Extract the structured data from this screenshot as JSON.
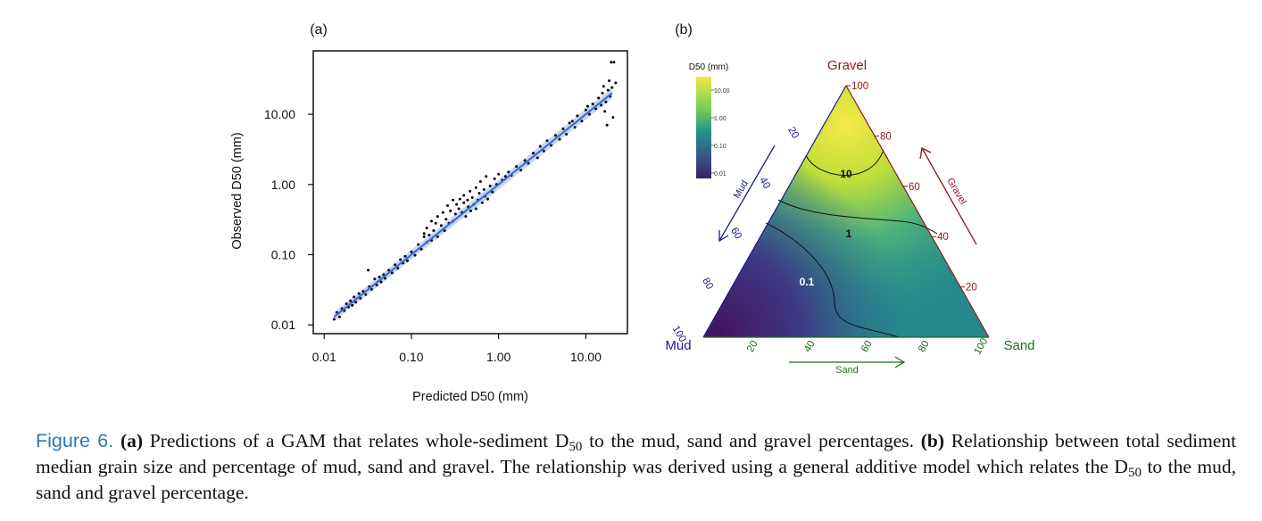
{
  "chart_data": [
    {
      "panel": "(a)",
      "type": "scatter",
      "title": "",
      "xlabel": "Predicted D50 (mm)",
      "ylabel": "Observed D50 (mm)",
      "xscale": "log10",
      "yscale": "log10",
      "xlim": [
        0.0075,
        30
      ],
      "ylim": [
        0.0075,
        80
      ],
      "xticks": [
        0.01,
        0.1,
        1,
        10
      ],
      "xtick_labels": [
        "0.01",
        "0.10",
        "1.00",
        "10.00"
      ],
      "yticks": [
        0.01,
        0.1,
        1,
        10
      ],
      "ytick_labels": [
        "0.01",
        "0.10",
        "1.00",
        "10.00"
      ],
      "grid": false,
      "fit_line": {
        "color": "#3a6fd8",
        "band_color": "#a9bde6",
        "x": [
          0.013,
          20
        ],
        "y": [
          0.013,
          20
        ]
      },
      "points": [
        [
          0.013,
          0.012
        ],
        [
          0.014,
          0.015
        ],
        [
          0.015,
          0.013
        ],
        [
          0.016,
          0.017
        ],
        [
          0.017,
          0.016
        ],
        [
          0.018,
          0.02
        ],
        [
          0.019,
          0.018
        ],
        [
          0.02,
          0.022
        ],
        [
          0.021,
          0.019
        ],
        [
          0.022,
          0.025
        ],
        [
          0.023,
          0.021
        ],
        [
          0.025,
          0.028
        ],
        [
          0.026,
          0.024
        ],
        [
          0.028,
          0.03
        ],
        [
          0.03,
          0.027
        ],
        [
          0.032,
          0.06
        ],
        [
          0.033,
          0.035
        ],
        [
          0.035,
          0.032
        ],
        [
          0.038,
          0.045
        ],
        [
          0.04,
          0.037
        ],
        [
          0.043,
          0.048
        ],
        [
          0.045,
          0.041
        ],
        [
          0.048,
          0.052
        ],
        [
          0.05,
          0.046
        ],
        [
          0.055,
          0.06
        ],
        [
          0.06,
          0.055
        ],
        [
          0.065,
          0.072
        ],
        [
          0.07,
          0.064
        ],
        [
          0.075,
          0.085
        ],
        [
          0.08,
          0.076
        ],
        [
          0.085,
          0.095
        ],
        [
          0.09,
          0.082
        ],
        [
          0.1,
          0.11
        ],
        [
          0.11,
          0.098
        ],
        [
          0.12,
          0.14
        ],
        [
          0.13,
          0.12
        ],
        [
          0.14,
          0.2
        ],
        [
          0.14,
          0.18
        ],
        [
          0.15,
          0.15
        ],
        [
          0.15,
          0.24
        ],
        [
          0.16,
          0.19
        ],
        [
          0.17,
          0.3
        ],
        [
          0.17,
          0.16
        ],
        [
          0.18,
          0.22
        ],
        [
          0.19,
          0.28
        ],
        [
          0.2,
          0.35
        ],
        [
          0.2,
          0.18
        ],
        [
          0.22,
          0.26
        ],
        [
          0.23,
          0.4
        ],
        [
          0.24,
          0.22
        ],
        [
          0.25,
          0.32
        ],
        [
          0.26,
          0.5
        ],
        [
          0.27,
          0.28
        ],
        [
          0.28,
          0.42
        ],
        [
          0.3,
          0.6
        ],
        [
          0.3,
          0.3
        ],
        [
          0.32,
          0.38
        ],
        [
          0.33,
          0.52
        ],
        [
          0.35,
          0.45
        ],
        [
          0.36,
          0.62
        ],
        [
          0.38,
          0.4
        ],
        [
          0.4,
          0.55
        ],
        [
          0.4,
          0.7
        ],
        [
          0.42,
          0.35
        ],
        [
          0.44,
          0.6
        ],
        [
          0.45,
          0.48
        ],
        [
          0.47,
          0.8
        ],
        [
          0.48,
          0.42
        ],
        [
          0.5,
          0.65
        ],
        [
          0.52,
          0.52
        ],
        [
          0.55,
          0.9
        ],
        [
          0.55,
          0.45
        ],
        [
          0.58,
          0.6
        ],
        [
          0.6,
          0.75
        ],
        [
          0.62,
          1.1
        ],
        [
          0.65,
          0.55
        ],
        [
          0.68,
          0.85
        ],
        [
          0.7,
          0.68
        ],
        [
          0.72,
          1.3
        ],
        [
          0.75,
          0.62
        ],
        [
          0.8,
          0.95
        ],
        [
          0.85,
          0.78
        ],
        [
          0.9,
          1.2
        ],
        [
          0.95,
          1.0
        ],
        [
          1.0,
          1.4
        ],
        [
          1.1,
          1.15
        ],
        [
          1.2,
          1.3
        ],
        [
          1.3,
          1.5
        ],
        [
          1.4,
          1.35
        ],
        [
          1.6,
          1.8
        ],
        [
          1.8,
          1.6
        ],
        [
          2.0,
          2.2
        ],
        [
          2.2,
          2.0
        ],
        [
          2.5,
          2.8
        ],
        [
          2.8,
          2.4
        ],
        [
          3.0,
          3.5
        ],
        [
          3.3,
          3.0
        ],
        [
          3.6,
          4.2
        ],
        [
          4.0,
          3.6
        ],
        [
          4.5,
          5.0
        ],
        [
          5.0,
          4.4
        ],
        [
          5.5,
          6.2
        ],
        [
          6.0,
          5.2
        ],
        [
          6.5,
          7.5
        ],
        [
          7.0,
          8.0
        ],
        [
          7.5,
          6.5
        ],
        [
          8.0,
          9.5
        ],
        [
          9.0,
          8.0
        ],
        [
          10.0,
          11.5
        ],
        [
          10.5,
          13.0
        ],
        [
          11.0,
          10.0
        ],
        [
          12.0,
          14.0
        ],
        [
          13.0,
          12.0
        ],
        [
          14.0,
          17.0
        ],
        [
          15.0,
          13.5
        ],
        [
          15.5,
          20.0
        ],
        [
          16.0,
          25.0
        ],
        [
          17.0,
          15.0
        ],
        [
          18.0,
          22.0
        ],
        [
          18.5,
          30.0
        ],
        [
          19.0,
          18.0
        ],
        [
          19.5,
          55.0
        ],
        [
          20.0,
          24.0
        ],
        [
          20.5,
          9.0
        ],
        [
          21.0,
          55.0
        ],
        [
          22.0,
          28.0
        ],
        [
          17.5,
          7.0
        ],
        [
          16.5,
          11.0
        ]
      ]
    },
    {
      "panel": "(b)",
      "type": "heatmap",
      "subtype": "ternary",
      "legend_title": "D50 (mm)",
      "legend_labels": [
        "10.00",
        "1.00",
        "0.10",
        "0.01"
      ],
      "axes": {
        "gravel": {
          "label": "Gravel",
          "color": "#8b1a1a",
          "ticks": [
            "20",
            "40",
            "60",
            "80",
            "100"
          ]
        },
        "sand": {
          "label": "Sand",
          "color": "#1e6b1e",
          "ticks": [
            "20",
            "40",
            "60",
            "80",
            "100"
          ]
        },
        "mud": {
          "label": "Mud",
          "color": "#1a1a8b",
          "ticks": [
            "20",
            "40",
            "60",
            "80",
            "100"
          ]
        }
      },
      "contour_labels": [
        "10",
        "1",
        "0.1"
      ],
      "colors": {
        "low": "#3b1f5e",
        "mid": "#21908c",
        "high": "#f2e74a"
      }
    }
  ],
  "caption": {
    "label": "Figure 6.",
    "a": "(a)",
    "text_a": "Predictions of a GAM that relates whole-sediment D",
    "sub1": "50",
    "text_a2": "to the mud, sand and gravel percentages.",
    "b": "(b)",
    "text_b": "Relationship between total sediment median grain size and percentage of mud, sand and gravel. The relationship was derived using a general additive model which relates the D",
    "sub2": "50",
    "text_b2": "to the mud, sand and gravel percentage."
  }
}
